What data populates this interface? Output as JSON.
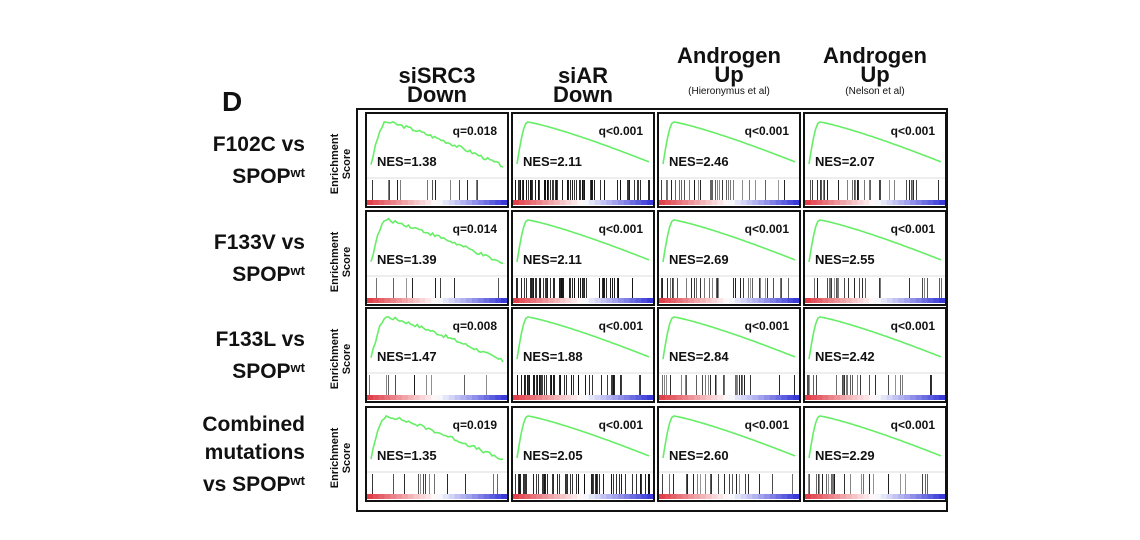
{
  "panel_label": "D",
  "chart_data": {
    "type": "gsea_enrichment_plot_grid",
    "y_axis_label": "Enrichment Score",
    "columns": [
      {
        "title_line1": "siSRC3",
        "title_line2": "Down",
        "subtitle": ""
      },
      {
        "title_line1": "siAR",
        "title_line2": "Down",
        "subtitle": ""
      },
      {
        "title_line1": "Androgen",
        "title_line2": "Up",
        "subtitle": "(Hieronymus et al)"
      },
      {
        "title_line1": "Androgen",
        "title_line2": "Up",
        "subtitle": "(Nelson et al)"
      }
    ],
    "rows": [
      {
        "label_lines": [
          "F102C vs",
          "SPOP"
        ],
        "superscript": "wt"
      },
      {
        "label_lines": [
          "F133V vs",
          "SPOP"
        ],
        "superscript": "wt"
      },
      {
        "label_lines": [
          "F133L vs",
          "SPOP"
        ],
        "superscript": "wt"
      },
      {
        "label_lines": [
          "Combined",
          "mutations",
          "vs SPOP"
        ],
        "superscript": "wt"
      }
    ],
    "cells": [
      [
        {
          "q": "q=0.018",
          "nes": "NES=1.38",
          "nes_value": 1.38
        },
        {
          "q": "q<0.001",
          "nes": "NES=2.11",
          "nes_value": 2.11
        },
        {
          "q": "q<0.001",
          "nes": "NES=2.46",
          "nes_value": 2.46
        },
        {
          "q": "q<0.001",
          "nes": "NES=2.07",
          "nes_value": 2.07
        }
      ],
      [
        {
          "q": "q=0.014",
          "nes": "NES=1.39",
          "nes_value": 1.39
        },
        {
          "q": "q<0.001",
          "nes": "NES=2.11",
          "nes_value": 2.11
        },
        {
          "q": "q<0.001",
          "nes": "NES=2.69",
          "nes_value": 2.69
        },
        {
          "q": "q<0.001",
          "nes": "NES=2.55",
          "nes_value": 2.55
        }
      ],
      [
        {
          "q": "q=0.008",
          "nes": "NES=1.47",
          "nes_value": 1.47
        },
        {
          "q": "q<0.001",
          "nes": "NES=1.88",
          "nes_value": 1.88
        },
        {
          "q": "q<0.001",
          "nes": "NES=2.84",
          "nes_value": 2.84
        },
        {
          "q": "q<0.001",
          "nes": "NES=2.42",
          "nes_value": 2.42
        }
      ],
      [
        {
          "q": "q=0.019",
          "nes": "NES=1.35",
          "nes_value": 1.35
        },
        {
          "q": "q<0.001",
          "nes": "NES=2.05",
          "nes_value": 2.05
        },
        {
          "q": "q<0.001",
          "nes": "NES=2.60",
          "nes_value": 2.6
        },
        {
          "q": "q<0.001",
          "nes": "NES=2.29",
          "nes_value": 2.29
        }
      ]
    ],
    "curve_color": "#66ee66",
    "ranking_bar_colors": {
      "positive": "#e0404a",
      "negative": "#3a3ad8"
    }
  }
}
